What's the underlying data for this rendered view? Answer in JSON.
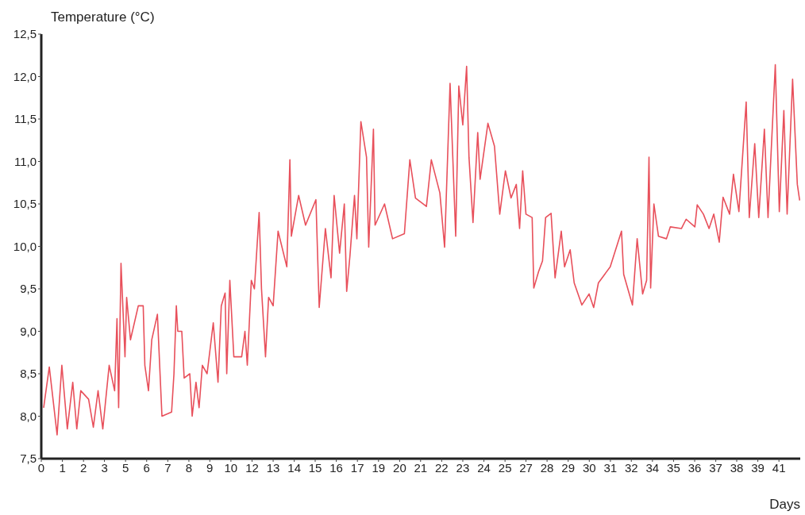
{
  "chart_data": {
    "type": "line",
    "xlabel": "Days",
    "ylabel": "Temperature (°C)",
    "xlim": [
      0,
      41.7
    ],
    "ylim": [
      7.5,
      12.5
    ],
    "xticks": [
      {
        "value": 0,
        "label": "0"
      },
      {
        "value": 1.16,
        "label": "1"
      },
      {
        "value": 2.32,
        "label": "2"
      },
      {
        "value": 3.47,
        "label": "3"
      },
      {
        "value": 4.63,
        "label": "5"
      },
      {
        "value": 5.79,
        "label": "6"
      },
      {
        "value": 6.95,
        "label": "7"
      },
      {
        "value": 8.11,
        "label": "8"
      },
      {
        "value": 9.26,
        "label": "9"
      },
      {
        "value": 10.42,
        "label": "10"
      },
      {
        "value": 11.58,
        "label": "12"
      },
      {
        "value": 12.74,
        "label": "13"
      },
      {
        "value": 13.9,
        "label": "14"
      },
      {
        "value": 15.05,
        "label": "15"
      },
      {
        "value": 16.21,
        "label": "16"
      },
      {
        "value": 17.37,
        "label": "17"
      },
      {
        "value": 18.53,
        "label": "19"
      },
      {
        "value": 19.69,
        "label": "20"
      },
      {
        "value": 20.84,
        "label": "21"
      },
      {
        "value": 22.0,
        "label": "22"
      },
      {
        "value": 23.16,
        "label": "23"
      },
      {
        "value": 24.32,
        "label": "24"
      },
      {
        "value": 25.48,
        "label": "25"
      },
      {
        "value": 26.63,
        "label": "27"
      },
      {
        "value": 27.79,
        "label": "28"
      },
      {
        "value": 28.95,
        "label": "29"
      },
      {
        "value": 30.11,
        "label": "30"
      },
      {
        "value": 31.27,
        "label": "31"
      },
      {
        "value": 32.42,
        "label": "32"
      },
      {
        "value": 33.58,
        "label": "34"
      },
      {
        "value": 34.74,
        "label": "35"
      },
      {
        "value": 35.9,
        "label": "36"
      },
      {
        "value": 37.06,
        "label": "37"
      },
      {
        "value": 38.21,
        "label": "38"
      },
      {
        "value": 39.37,
        "label": "39"
      },
      {
        "value": 40.53,
        "label": "41"
      }
    ],
    "yticks": [
      {
        "value": 7.5,
        "label": "7,5"
      },
      {
        "value": 8,
        "label": "8,0"
      },
      {
        "value": 8.5,
        "label": "8,5"
      },
      {
        "value": 9,
        "label": "9,0"
      },
      {
        "value": 9.5,
        "label": "9,5"
      },
      {
        "value": 10,
        "label": "10,0"
      },
      {
        "value": 10.5,
        "label": "10,5"
      },
      {
        "value": 11,
        "label": "11,0"
      },
      {
        "value": 11.5,
        "label": "11,5"
      },
      {
        "value": 12,
        "label": "12,0"
      },
      {
        "value": 12.5,
        "label": "12,5"
      }
    ],
    "grid": false,
    "marker": "none",
    "line_style": "solid",
    "series": [
      {
        "color": "#e8505b",
        "x": [
          0.13,
          0.44,
          0.87,
          1.13,
          1.43,
          1.73,
          1.95,
          2.17,
          2.6,
          2.86,
          3.12,
          3.38,
          3.73,
          4.03,
          4.16,
          4.25,
          4.38,
          4.6,
          4.69,
          4.9,
          5.33,
          5.6,
          5.69,
          5.89,
          6.07,
          6.38,
          6.63,
          7.16,
          7.29,
          7.42,
          7.5,
          7.72,
          7.85,
          8.16,
          8.29,
          8.5,
          8.67,
          8.85,
          9.11,
          9.45,
          9.71,
          9.89,
          10.1,
          10.19,
          10.36,
          10.58,
          11.01,
          11.19,
          11.32,
          11.54,
          11.71,
          11.97,
          12.1,
          12.32,
          12.49,
          12.74,
          13.01,
          13.49,
          13.66,
          13.74,
          14.14,
          14.52,
          15.09,
          15.27,
          15.61,
          15.92,
          16.09,
          16.39,
          16.65,
          16.78,
          16.96,
          17.21,
          17.34,
          17.56,
          17.87,
          17.99,
          18.25,
          18.34,
          18.86,
          19.3,
          19.95,
          20.25,
          20.56,
          21.16,
          21.43,
          21.9,
          22.16,
          22.46,
          22.77,
          22.94,
          23.16,
          23.37,
          23.5,
          23.72,
          23.98,
          24.11,
          24.54,
          24.9,
          25.19,
          25.5,
          25.81,
          26.1,
          26.28,
          26.45,
          26.63,
          26.97,
          27.06,
          27.32,
          27.54,
          27.71,
          28.01,
          28.23,
          28.57,
          28.75,
          29.06,
          29.28,
          29.7,
          30.1,
          30.35,
          30.61,
          31.26,
          31.88,
          32.0,
          32.48,
          32.74,
          33.04,
          33.26,
          33.39,
          33.48,
          33.66,
          33.91,
          34.35,
          34.56,
          35.17,
          35.43,
          35.91,
          36.04,
          36.38,
          36.69,
          36.95,
          37.25,
          37.46,
          37.82,
          38.03,
          38.33,
          38.73,
          38.9,
          39.2,
          39.42,
          39.73,
          39.93,
          40.33,
          40.55,
          40.8,
          40.98,
          41.28,
          41.54,
          41.67
        ],
        "values": [
          8.1,
          8.58,
          7.78,
          8.6,
          7.85,
          8.4,
          7.85,
          8.3,
          8.2,
          7.87,
          8.3,
          7.85,
          8.6,
          8.3,
          9.15,
          8.1,
          9.8,
          8.7,
          9.4,
          8.9,
          9.3,
          9.3,
          8.6,
          8.3,
          8.9,
          9.2,
          8.0,
          8.05,
          8.5,
          9.3,
          9.0,
          9.0,
          8.45,
          8.5,
          8.0,
          8.4,
          8.1,
          8.6,
          8.5,
          9.1,
          8.4,
          9.3,
          9.45,
          8.5,
          9.6,
          8.7,
          8.7,
          9.0,
          8.6,
          9.6,
          9.5,
          10.4,
          9.5,
          8.7,
          9.4,
          9.3,
          10.18,
          9.76,
          11.02,
          10.12,
          10.6,
          10.25,
          10.55,
          9.28,
          10.21,
          9.63,
          10.6,
          9.92,
          10.5,
          9.47,
          9.89,
          10.6,
          10.09,
          11.47,
          11.05,
          9.99,
          11.38,
          10.25,
          10.5,
          10.09,
          10.15,
          11.02,
          10.57,
          10.47,
          11.02,
          10.63,
          9.99,
          11.92,
          10.12,
          11.89,
          11.43,
          12.12,
          11.05,
          10.28,
          11.34,
          10.79,
          11.45,
          11.18,
          10.38,
          10.89,
          10.57,
          10.73,
          10.21,
          10.89,
          10.38,
          10.34,
          9.51,
          9.7,
          9.83,
          10.34,
          10.39,
          9.63,
          10.18,
          9.76,
          9.96,
          9.57,
          9.31,
          9.44,
          9.28,
          9.57,
          9.76,
          10.18,
          9.67,
          9.31,
          10.09,
          9.44,
          9.6,
          11.05,
          9.51,
          10.5,
          10.12,
          10.09,
          10.23,
          10.21,
          10.32,
          10.23,
          10.49,
          10.38,
          10.21,
          10.38,
          10.05,
          10.58,
          10.38,
          10.85,
          10.41,
          11.7,
          10.34,
          11.21,
          10.34,
          11.38,
          10.34,
          12.14,
          10.41,
          11.6,
          10.38,
          11.97,
          10.73,
          10.54
        ]
      }
    ]
  }
}
